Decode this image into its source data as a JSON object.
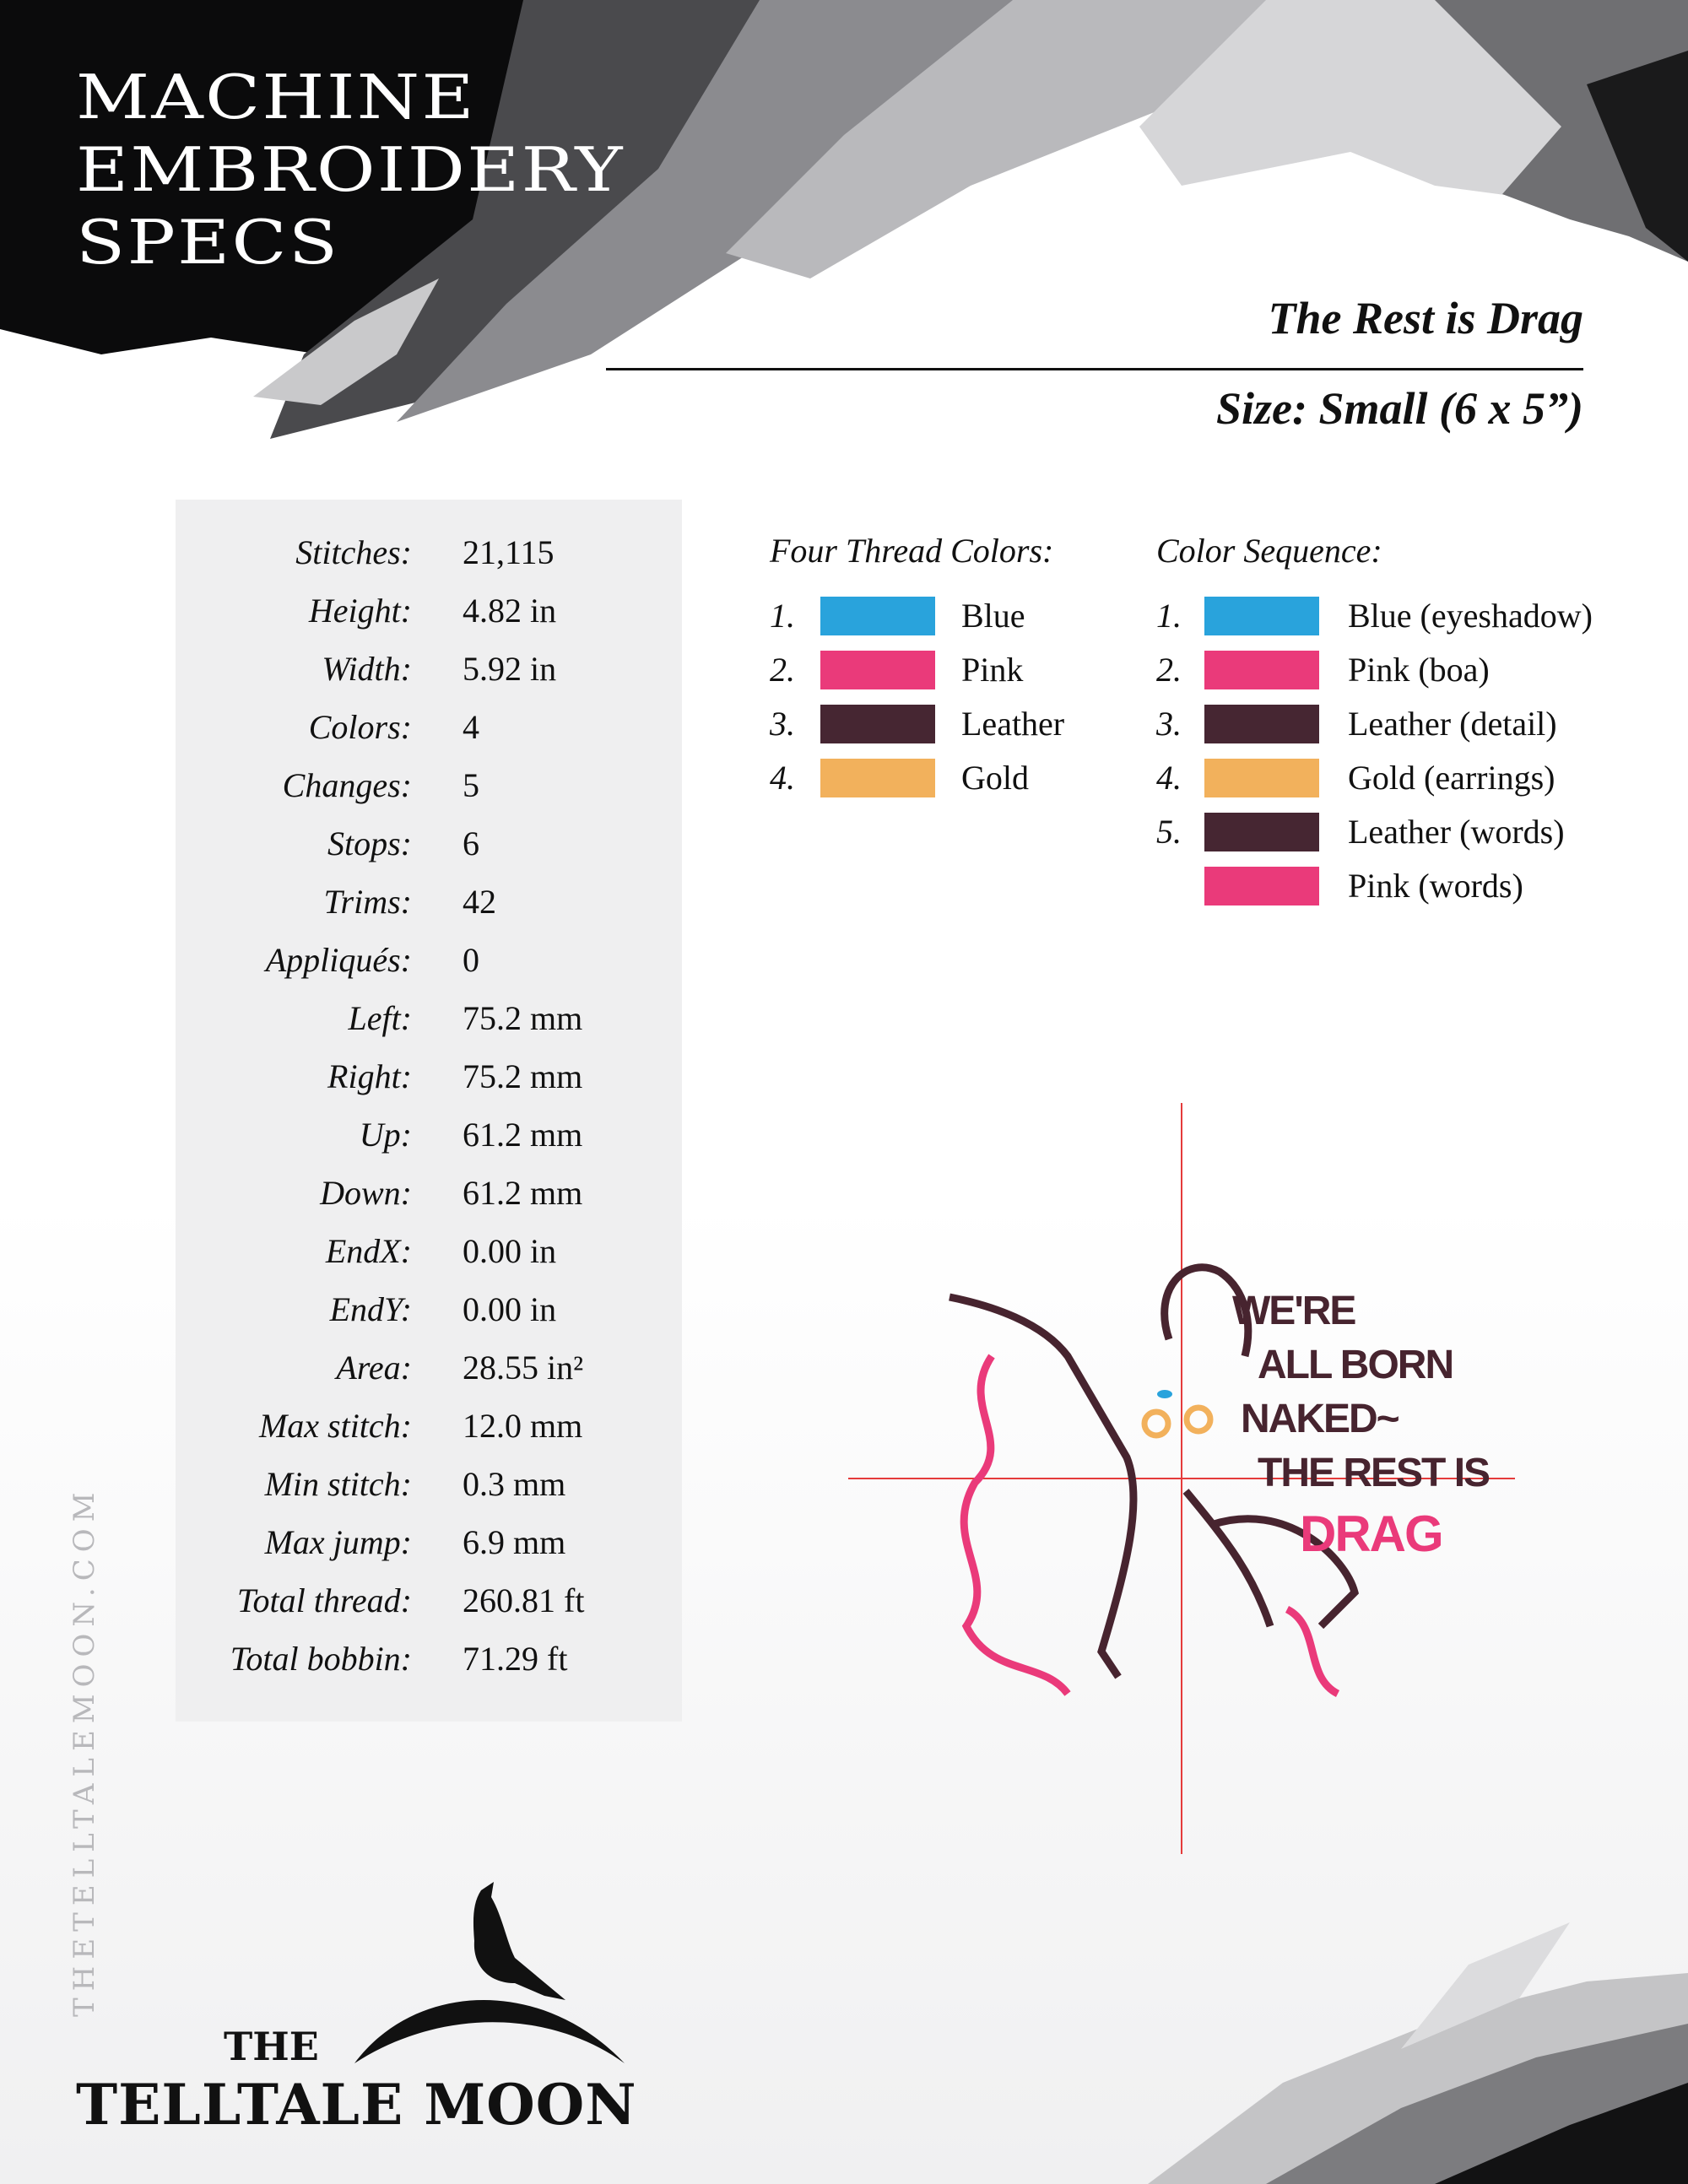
{
  "header": {
    "title_lines": [
      "MACHINE",
      "EMBROIDERY",
      "SPECS"
    ],
    "design_name": "The Rest is Drag",
    "size": "Size: Small (6 x 5”)"
  },
  "stats": [
    {
      "label": "Stitches:",
      "value": "21,115"
    },
    {
      "label": "Height:",
      "value": "4.82 in"
    },
    {
      "label": "Width:",
      "value": "5.92 in"
    },
    {
      "label": "Colors:",
      "value": "4"
    },
    {
      "label": "Changes:",
      "value": "5"
    },
    {
      "label": "Stops:",
      "value": "6"
    },
    {
      "label": "Trims:",
      "value": "42"
    },
    {
      "label": "Appliqués:",
      "value": "0"
    },
    {
      "label": "Left:",
      "value": "75.2 mm"
    },
    {
      "label": "Right:",
      "value": "75.2 mm"
    },
    {
      "label": "Up:",
      "value": "61.2 mm"
    },
    {
      "label": "Down:",
      "value": "61.2 mm"
    },
    {
      "label": "EndX:",
      "value": "0.00 in"
    },
    {
      "label": "EndY:",
      "value": "0.00 in"
    },
    {
      "label": "Area:",
      "value": "28.55 in²"
    },
    {
      "label": "Max stitch:",
      "value": "12.0 mm"
    },
    {
      "label": "Min stitch:",
      "value": "0.3 mm"
    },
    {
      "label": "Max jump:",
      "value": "6.9 mm"
    },
    {
      "label": "Total thread:",
      "value": "260.81 ft"
    },
    {
      "label": "Total bobbin:",
      "value": "71.29 ft"
    }
  ],
  "thread_colors": {
    "heading": "Four Thread Colors:",
    "items": [
      {
        "num": "1.",
        "name": "Blue",
        "color": "#29a3dc"
      },
      {
        "num": "2.",
        "name": "Pink",
        "color": "#ea3a7a"
      },
      {
        "num": "3.",
        "name": "Leather",
        "color": "#462632"
      },
      {
        "num": "4.",
        "name": "Gold",
        "color": "#f2b15c"
      }
    ]
  },
  "color_sequence": {
    "heading": "Color Sequence:",
    "items": [
      {
        "num": "1.",
        "name": "Blue (eyeshadow)",
        "color": "#29a3dc"
      },
      {
        "num": "2.",
        "name": "Pink (boa)",
        "color": "#ea3a7a"
      },
      {
        "num": "3.",
        "name": "Leather (detail)",
        "color": "#462632"
      },
      {
        "num": "4.",
        "name": "Gold (earrings)",
        "color": "#f2b15c"
      },
      {
        "num": "5.",
        "name": "Leather (words)",
        "color": "#462632"
      },
      {
        "num": "",
        "name": "Pink (words)",
        "color": "#ea3a7a"
      }
    ]
  },
  "design_preview": {
    "lines": [
      "WE'RE",
      "ALL BORN",
      "NAKED~",
      "THE REST IS"
    ],
    "accent_line": "DRAG",
    "crosshair_color": "#e53b3b"
  },
  "footer": {
    "website": "THETELLTALEMOON.COM",
    "logo_the": "THE",
    "logo_main": "TELLTALE MOON"
  }
}
